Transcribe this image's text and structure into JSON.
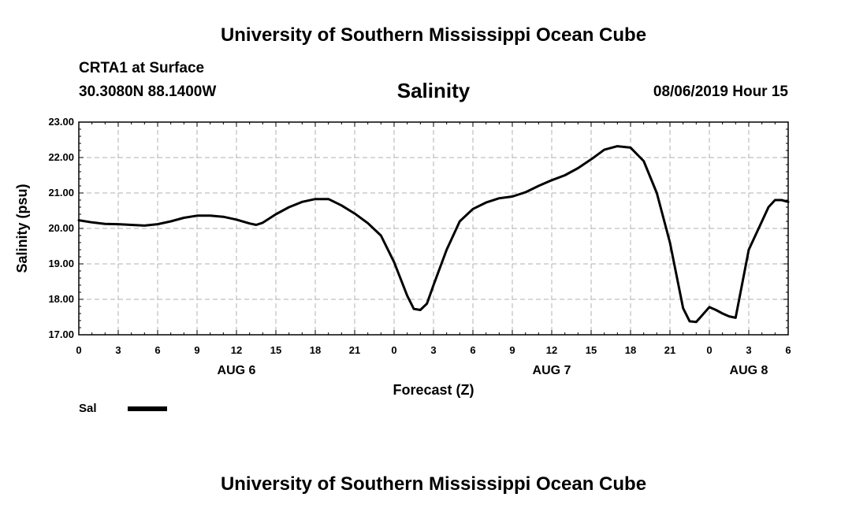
{
  "header": {
    "top_title": "University of Southern Mississippi Ocean Cube",
    "station": "CRTA1 at Surface",
    "coords": "30.3080N 88.1400W",
    "datetime": "08/06/2019 Hour 15",
    "bottom_title": "University of Southern Mississippi Ocean Cube"
  },
  "colors": {
    "line": "#000000",
    "grid": "#b0b0b0",
    "axis": "#000000"
  },
  "chart_data": {
    "type": "line",
    "title": "Salinity",
    "xlabel": "Forecast (Z)",
    "ylabel": "Salinity (psu)",
    "xlim": [
      0,
      54
    ],
    "ylim": [
      17.0,
      23.0
    ],
    "grid": true,
    "y_ticks": [
      "17.00",
      "18.00",
      "19.00",
      "20.00",
      "21.00",
      "22.00",
      "23.00"
    ],
    "x_tick_values": [
      0,
      3,
      6,
      9,
      12,
      15,
      18,
      21,
      24,
      27,
      30,
      33,
      36,
      39,
      42,
      45,
      48,
      51,
      54
    ],
    "x_tick_labels": [
      "0",
      "3",
      "6",
      "9",
      "12",
      "15",
      "18",
      "21",
      "0",
      "3",
      "6",
      "9",
      "12",
      "15",
      "18",
      "21",
      "0",
      "3",
      "6"
    ],
    "day_labels": [
      {
        "label": "AUG 6",
        "x": 12
      },
      {
        "label": "AUG 7",
        "x": 36
      },
      {
        "label": "AUG 8",
        "x": 51
      }
    ],
    "series": [
      {
        "name": "Sal",
        "x": [
          0,
          1,
          2,
          3,
          4,
          5,
          6,
          7,
          8,
          9,
          10,
          11,
          12,
          13,
          13.5,
          14,
          15,
          16,
          17,
          18,
          19,
          20,
          21,
          22,
          23,
          24,
          25,
          25.5,
          26,
          26.5,
          27,
          28,
          29,
          30,
          31,
          32,
          33,
          34,
          35,
          36,
          37,
          38,
          39,
          40,
          41,
          42,
          43,
          44,
          45,
          46,
          46.5,
          47,
          48,
          48.5,
          49,
          49.5,
          50,
          51,
          52,
          52.5,
          53,
          53.5,
          54
        ],
        "values": [
          20.23,
          20.17,
          20.13,
          20.12,
          20.1,
          20.08,
          20.12,
          20.2,
          20.3,
          20.36,
          20.36,
          20.33,
          20.25,
          20.14,
          20.1,
          20.16,
          20.4,
          20.6,
          20.75,
          20.83,
          20.83,
          20.65,
          20.42,
          20.15,
          19.8,
          19.05,
          18.1,
          17.73,
          17.7,
          17.88,
          18.4,
          19.4,
          20.2,
          20.55,
          20.73,
          20.85,
          20.9,
          21.02,
          21.2,
          21.36,
          21.5,
          21.7,
          21.95,
          22.22,
          22.32,
          22.28,
          21.9,
          21.0,
          19.6,
          17.75,
          17.38,
          17.36,
          17.78,
          17.7,
          17.6,
          17.52,
          17.48,
          19.4,
          20.2,
          20.6,
          20.8,
          20.8,
          20.75
        ]
      }
    ],
    "legend_position": "bottom-left"
  }
}
